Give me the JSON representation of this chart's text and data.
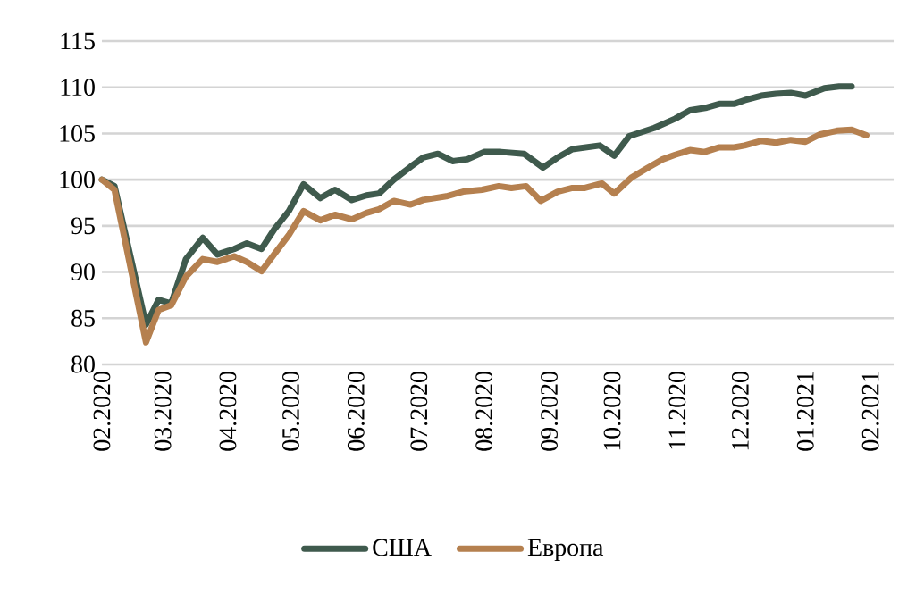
{
  "chart_data": {
    "type": "line",
    "xlim": [
      "2020-02-01",
      "2021-02-12"
    ],
    "ylim": [
      80,
      115
    ],
    "xticks": [
      {
        "value": "2020-02-01",
        "label": "02.2020"
      },
      {
        "value": "2020-03-01",
        "label": "03.2020"
      },
      {
        "value": "2020-04-01",
        "label": "04.2020"
      },
      {
        "value": "2020-05-01",
        "label": "05.2020"
      },
      {
        "value": "2020-06-01",
        "label": "06.2020"
      },
      {
        "value": "2020-07-01",
        "label": "07.2020"
      },
      {
        "value": "2020-08-01",
        "label": "08.2020"
      },
      {
        "value": "2020-09-01",
        "label": "09.2020"
      },
      {
        "value": "2020-10-01",
        "label": "10.2020"
      },
      {
        "value": "2020-11-01",
        "label": "11.2020"
      },
      {
        "value": "2020-12-01",
        "label": "12.2020"
      },
      {
        "value": "2021-01-01",
        "label": "01.2021"
      },
      {
        "value": "2021-02-01",
        "label": "02.2021"
      }
    ],
    "yticks": [
      80,
      85,
      90,
      95,
      100,
      105,
      110,
      115
    ],
    "grid": "y",
    "legend": "bottom",
    "marker": "none",
    "line_style": "solid",
    "series": [
      {
        "name": "США",
        "color": "#3f5a4d",
        "x": [
          "2020-02-01",
          "2020-02-07",
          "2020-02-22",
          "2020-02-28",
          "2020-03-05",
          "2020-03-12",
          "2020-03-20",
          "2020-03-27",
          "2020-04-04",
          "2020-04-10",
          "2020-04-17",
          "2020-04-23",
          "2020-04-30",
          "2020-05-07",
          "2020-05-15",
          "2020-05-22",
          "2020-05-30",
          "2020-06-06",
          "2020-06-12",
          "2020-06-19",
          "2020-06-27",
          "2020-07-03",
          "2020-07-10",
          "2020-07-17",
          "2020-07-24",
          "2020-08-01",
          "2020-08-09",
          "2020-08-20",
          "2020-08-29",
          "2020-09-05",
          "2020-09-12",
          "2020-09-25",
          "2020-10-02",
          "2020-10-09",
          "2020-10-21",
          "2020-10-31",
          "2020-11-07",
          "2020-11-15",
          "2020-11-21",
          "2020-11-28",
          "2020-12-03",
          "2020-12-11",
          "2020-12-18",
          "2020-12-25",
          "2021-01-01",
          "2021-01-10",
          "2021-01-17",
          "2021-01-23"
        ],
        "values": [
          100,
          99.3,
          84.3,
          87.0,
          86.6,
          91.4,
          93.7,
          91.9,
          92.5,
          93.1,
          92.5,
          94.6,
          96.6,
          99.5,
          98.0,
          98.9,
          97.8,
          98.3,
          98.5,
          100.0,
          101.4,
          102.4,
          102.8,
          102.0,
          102.2,
          103.0,
          103.0,
          102.8,
          101.3,
          102.4,
          103.3,
          103.7,
          102.6,
          104.7,
          105.6,
          106.6,
          107.5,
          107.8,
          108.2,
          108.2,
          108.6,
          109.1,
          109.3,
          109.4,
          109.1,
          109.9,
          110.1,
          110.1
        ]
      },
      {
        "name": "Европа",
        "color": "#b5804f",
        "x": [
          "2020-02-01",
          "2020-02-07",
          "2020-02-22",
          "2020-02-28",
          "2020-03-05",
          "2020-03-12",
          "2020-03-20",
          "2020-03-27",
          "2020-04-04",
          "2020-04-10",
          "2020-04-17",
          "2020-04-23",
          "2020-04-30",
          "2020-05-07",
          "2020-05-15",
          "2020-05-22",
          "2020-05-30",
          "2020-06-06",
          "2020-06-12",
          "2020-06-19",
          "2020-06-27",
          "2020-07-03",
          "2020-07-14",
          "2020-07-22",
          "2020-07-31",
          "2020-08-08",
          "2020-08-14",
          "2020-08-21",
          "2020-08-28",
          "2020-09-05",
          "2020-09-12",
          "2020-09-18",
          "2020-09-26",
          "2020-10-02",
          "2020-10-10",
          "2020-10-18",
          "2020-10-25",
          "2020-10-31",
          "2020-11-07",
          "2020-11-14",
          "2020-11-21",
          "2020-11-28",
          "2020-12-03",
          "2020-12-11",
          "2020-12-18",
          "2020-12-25",
          "2021-01-01",
          "2021-01-08",
          "2021-01-16",
          "2021-01-23",
          "2021-01-30"
        ],
        "values": [
          100,
          98.9,
          82.4,
          85.9,
          86.4,
          89.5,
          91.4,
          91.1,
          91.7,
          91.1,
          90.1,
          91.9,
          94.0,
          96.6,
          95.6,
          96.2,
          95.7,
          96.4,
          96.8,
          97.7,
          97.3,
          97.8,
          98.2,
          98.7,
          98.9,
          99.3,
          99.1,
          99.3,
          97.7,
          98.7,
          99.1,
          99.1,
          99.6,
          98.5,
          100.2,
          101.3,
          102.2,
          102.7,
          103.2,
          103.0,
          103.5,
          103.5,
          103.7,
          104.2,
          104.0,
          104.3,
          104.1,
          104.9,
          105.3,
          105.4,
          104.8
        ]
      }
    ]
  }
}
